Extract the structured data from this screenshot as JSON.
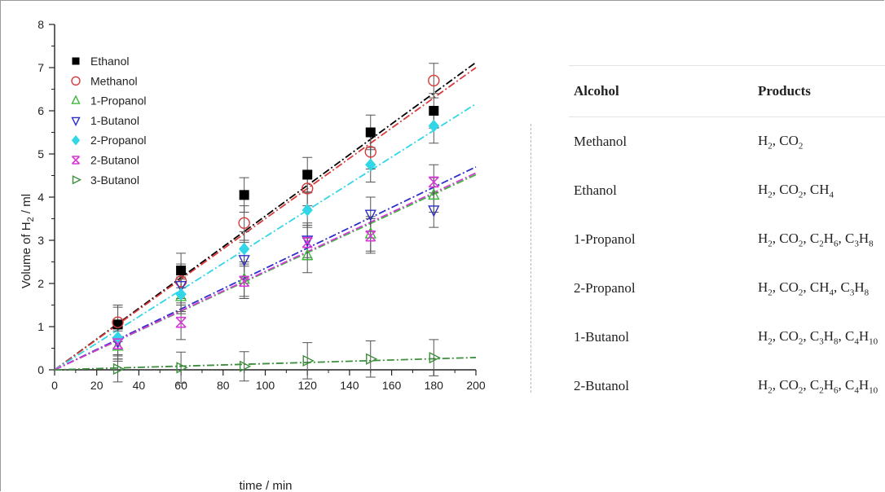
{
  "chart_data": {
    "type": "scatter",
    "xlabel": "time / min",
    "ylabel": "Volume of H2 / ml",
    "xlim": [
      0,
      200
    ],
    "ylim": [
      0,
      8
    ],
    "xticks": [
      0,
      20,
      40,
      60,
      80,
      100,
      120,
      140,
      160,
      180,
      200
    ],
    "yticks": [
      0,
      1,
      2,
      3,
      4,
      5,
      6,
      7,
      8
    ],
    "legend_position": "top-left",
    "series": [
      {
        "name": "Ethanol",
        "color": "#000000",
        "marker": "square-filled",
        "fit_slope": 0.0356,
        "x": [
          30,
          60,
          90,
          120,
          150,
          180
        ],
        "y": [
          1.05,
          2.3,
          4.05,
          4.52,
          5.5,
          6.0
        ],
        "err": [
          0.4,
          0.4,
          0.4,
          0.4,
          0.4,
          0.4
        ]
      },
      {
        "name": "Methanol",
        "color": "#d93a3a",
        "marker": "circle-open",
        "fit_slope": 0.035,
        "x": [
          30,
          60,
          90,
          120,
          150,
          180
        ],
        "y": [
          1.1,
          2.05,
          3.4,
          4.2,
          5.05,
          6.7
        ],
        "err": [
          0.4,
          0.4,
          0.4,
          0.4,
          0.4,
          0.4
        ]
      },
      {
        "name": "1-Propanol",
        "color": "#3cb83c",
        "marker": "triangle-up-open",
        "fit_slope": 0.0226,
        "x": [
          30,
          60,
          90,
          120,
          150,
          180
        ],
        "y": [
          0.55,
          1.7,
          2.1,
          2.65,
          3.15,
          4.05
        ],
        "err": [
          0.35,
          0.4,
          0.4,
          0.4,
          0.4,
          0.4
        ]
      },
      {
        "name": "1-Butanol",
        "color": "#2d2dc8",
        "marker": "triangle-down-open",
        "fit_slope": 0.0235,
        "x": [
          30,
          60,
          90,
          120,
          150,
          180
        ],
        "y": [
          0.65,
          1.95,
          2.55,
          3.0,
          3.6,
          3.7
        ],
        "err": [
          0.4,
          0.4,
          0.4,
          0.4,
          0.4,
          0.4
        ]
      },
      {
        "name": "2-Propanol",
        "color": "#33d6e6",
        "marker": "diamond-filled",
        "fit_slope": 0.0308,
        "x": [
          30,
          60,
          90,
          120,
          150,
          180
        ],
        "y": [
          0.75,
          1.75,
          2.8,
          3.7,
          4.75,
          5.65
        ],
        "err": [
          0.4,
          0.4,
          0.4,
          0.4,
          0.4,
          0.4
        ]
      },
      {
        "name": "2-Butanol",
        "color": "#d63ad6",
        "marker": "x-cross",
        "fit_slope": 0.0228,
        "x": [
          30,
          60,
          90,
          120,
          150,
          180
        ],
        "y": [
          0.6,
          1.1,
          2.05,
          2.95,
          3.1,
          4.35
        ],
        "err": [
          0.35,
          0.4,
          0.4,
          0.4,
          0.4,
          0.4
        ]
      },
      {
        "name": "3-Butanol",
        "color": "#3d8f3d",
        "marker": "triangle-right-open",
        "fit_slope": 0.00142,
        "x": [
          30,
          60,
          90,
          120,
          150,
          180
        ],
        "y": [
          0.02,
          0.05,
          0.08,
          0.21,
          0.25,
          0.28
        ],
        "err": [
          0.3,
          0.36,
          0.34,
          0.42,
          0.42,
          0.42
        ]
      }
    ]
  },
  "table": {
    "headers": [
      "Alcohol",
      "Products"
    ],
    "rows": [
      {
        "alcohol": "Methanol",
        "products": "H₂, CO₂"
      },
      {
        "alcohol": "Ethanol",
        "products": "H₂, CO₂, CH₄"
      },
      {
        "alcohol": "1-Propanol",
        "products": "H₂, CO₂, C₂H₆, C₃H₈"
      },
      {
        "alcohol": "2-Propanol",
        "products": "H₂, CO₂, CH₄, C₃H₈"
      },
      {
        "alcohol": "1-Butanol",
        "products": "H₂, CO₂, C₃H₈, C₄H₁₀"
      },
      {
        "alcohol": "2-Butanol",
        "products": "H₂, CO₂, C₂H₆, C₄H₁₀"
      }
    ]
  }
}
